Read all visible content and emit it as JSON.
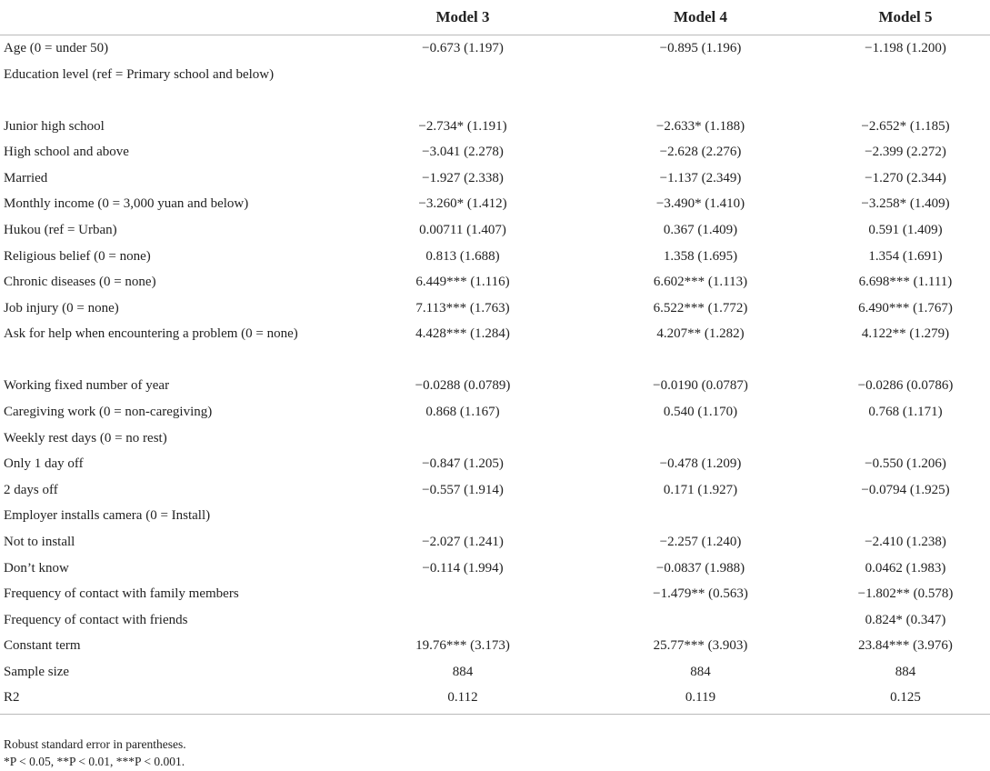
{
  "table": {
    "header": {
      "label": "",
      "models": [
        "Model 3",
        "Model 4",
        "Model 5"
      ]
    },
    "rows": [
      {
        "label": "Age (0 = under 50)",
        "m3": "−0.673 (1.197)",
        "m4": "−0.895 (1.196)",
        "m5": "−1.198 (1.200)"
      },
      {
        "label": "Education level (ref = Primary school and below)",
        "m3": "",
        "m4": "",
        "m5": ""
      },
      {
        "label": "Junior high school",
        "m3": "−2.734* (1.191)",
        "m4": "−2.633* (1.188)",
        "m5": "−2.652* (1.185)"
      },
      {
        "label": "High school and above",
        "m3": "−3.041 (2.278)",
        "m4": "−2.628 (2.276)",
        "m5": "−2.399 (2.272)"
      },
      {
        "label": "Married",
        "m3": "−1.927 (2.338)",
        "m4": "−1.137 (2.349)",
        "m5": "−1.270 (2.344)"
      },
      {
        "label": "Monthly income (0 = 3,000 yuan and below)",
        "m3": "−3.260* (1.412)",
        "m4": "−3.490* (1.410)",
        "m5": "−3.258* (1.409)"
      },
      {
        "label": "Hukou (ref = Urban)",
        "m3": "0.00711 (1.407)",
        "m4": "0.367 (1.409)",
        "m5": "0.591 (1.409)"
      },
      {
        "label": "Religious belief (0 = none)",
        "m3": "0.813 (1.688)",
        "m4": "1.358 (1.695)",
        "m5": "1.354 (1.691)"
      },
      {
        "label": "Chronic diseases (0 = none)",
        "m3": "6.449*** (1.116)",
        "m4": "6.602*** (1.113)",
        "m5": "6.698*** (1.111)"
      },
      {
        "label": "Job injury (0 = none)",
        "m3": "7.113*** (1.763)",
        "m4": "6.522*** (1.772)",
        "m5": "6.490*** (1.767)"
      },
      {
        "label": "Ask for help when encountering a problem (0 = none)",
        "m3": "4.428*** (1.284)",
        "m4": "4.207** (1.282)",
        "m5": "4.122** (1.279)"
      },
      {
        "label": "Working fixed number of year",
        "m3": "−0.0288 (0.0789)",
        "m4": "−0.0190 (0.0787)",
        "m5": "−0.0286 (0.0786)"
      },
      {
        "label": "Caregiving work (0 = non-caregiving)",
        "m3": "0.868 (1.167)",
        "m4": "0.540 (1.170)",
        "m5": "0.768 (1.171)"
      },
      {
        "label": "Weekly rest days (0 = no rest)",
        "m3": "",
        "m4": "",
        "m5": ""
      },
      {
        "label": "Only 1 day off",
        "m3": "−0.847 (1.205)",
        "m4": "−0.478 (1.209)",
        "m5": "−0.550 (1.206)"
      },
      {
        "label": "2 days off",
        "m3": "−0.557 (1.914)",
        "m4": "0.171 (1.927)",
        "m5": "−0.0794 (1.925)"
      },
      {
        "label": "Employer installs camera (0 = Install)",
        "m3": "",
        "m4": "",
        "m5": ""
      },
      {
        "label": "Not to install",
        "m3": "−2.027 (1.241)",
        "m4": "−2.257 (1.240)",
        "m5": "−2.410 (1.238)"
      },
      {
        "label": "Don’t know",
        "m3": "−0.114 (1.994)",
        "m4": "−0.0837 (1.988)",
        "m5": "0.0462 (1.983)"
      },
      {
        "label": "Frequency of contact with family members",
        "m3": "",
        "m4": "−1.479** (0.563)",
        "m5": "−1.802** (0.578)"
      },
      {
        "label": "Frequency of contact with friends",
        "m3": "",
        "m4": "",
        "m5": "0.824* (0.347)"
      },
      {
        "label": "Constant term",
        "m3": "19.76*** (3.173)",
        "m4": "25.77*** (3.903)",
        "m5": "23.84*** (3.976)"
      },
      {
        "label": "Sample size",
        "m3": "884",
        "m4": "884",
        "m5": "884"
      },
      {
        "label": "R2",
        "m3": "0.112",
        "m4": "0.119",
        "m5": "0.125"
      }
    ],
    "notes": [
      "Robust standard error in parentheses.",
      "*P < 0.05, **P < 0.01, ***P < 0.001."
    ]
  }
}
